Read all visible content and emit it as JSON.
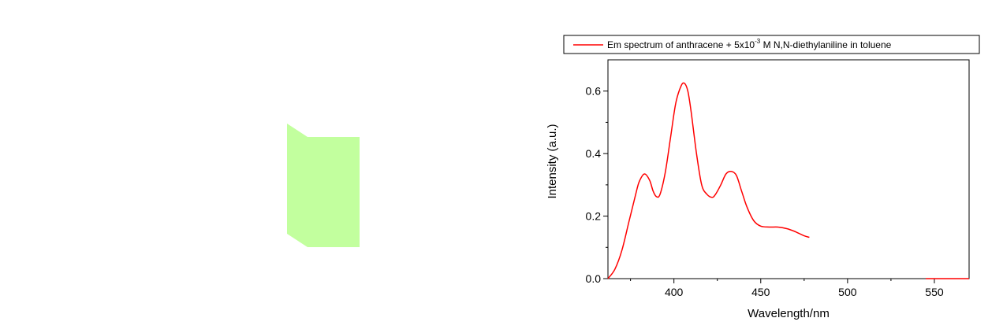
{
  "cuvette": {
    "fill": "#c2ff9e"
  },
  "chart_data": {
    "type": "line",
    "xlabel": "Wavelength/nm",
    "ylabel": "Intensity (a.u.)",
    "xlim": [
      362,
      570
    ],
    "ylim": [
      0,
      0.7
    ],
    "xticks": [
      400,
      450,
      500,
      550
    ],
    "yticks": [
      0.0,
      0.2,
      0.4,
      0.6
    ],
    "xtick_labels": [
      "400",
      "450",
      "500",
      "550"
    ],
    "ytick_labels": [
      "0.0",
      "0.2",
      "0.4",
      "0.6"
    ],
    "grid": false,
    "legend_position": "top",
    "legend": {
      "prefix": "Em spectrum of anthracene + 5x10",
      "exponent": "-3",
      "suffix": " M N,N-diethylaniline in toluene"
    },
    "series": [
      {
        "color": "#ff0000",
        "x": [
          362,
          366,
          370,
          374,
          378,
          380,
          383,
          386,
          388,
          390,
          392,
          395,
          398,
          401,
          404,
          406,
          408,
          410,
          413,
          416,
          419,
          422,
          424,
          427,
          430,
          433,
          436,
          439,
          442,
          446,
          450,
          455,
          460,
          465,
          470,
          475,
          478
        ],
        "y": [
          0.0,
          0.03,
          0.09,
          0.18,
          0.27,
          0.31,
          0.335,
          0.315,
          0.28,
          0.262,
          0.27,
          0.34,
          0.45,
          0.56,
          0.615,
          0.625,
          0.6,
          0.53,
          0.4,
          0.3,
          0.27,
          0.26,
          0.27,
          0.3,
          0.335,
          0.343,
          0.33,
          0.28,
          0.23,
          0.185,
          0.168,
          0.165,
          0.165,
          0.16,
          0.15,
          0.137,
          0.132
        ]
      },
      {
        "color": "#ff0000",
        "x": [
          545,
          570
        ],
        "y": [
          0.0,
          0.0
        ]
      }
    ]
  }
}
